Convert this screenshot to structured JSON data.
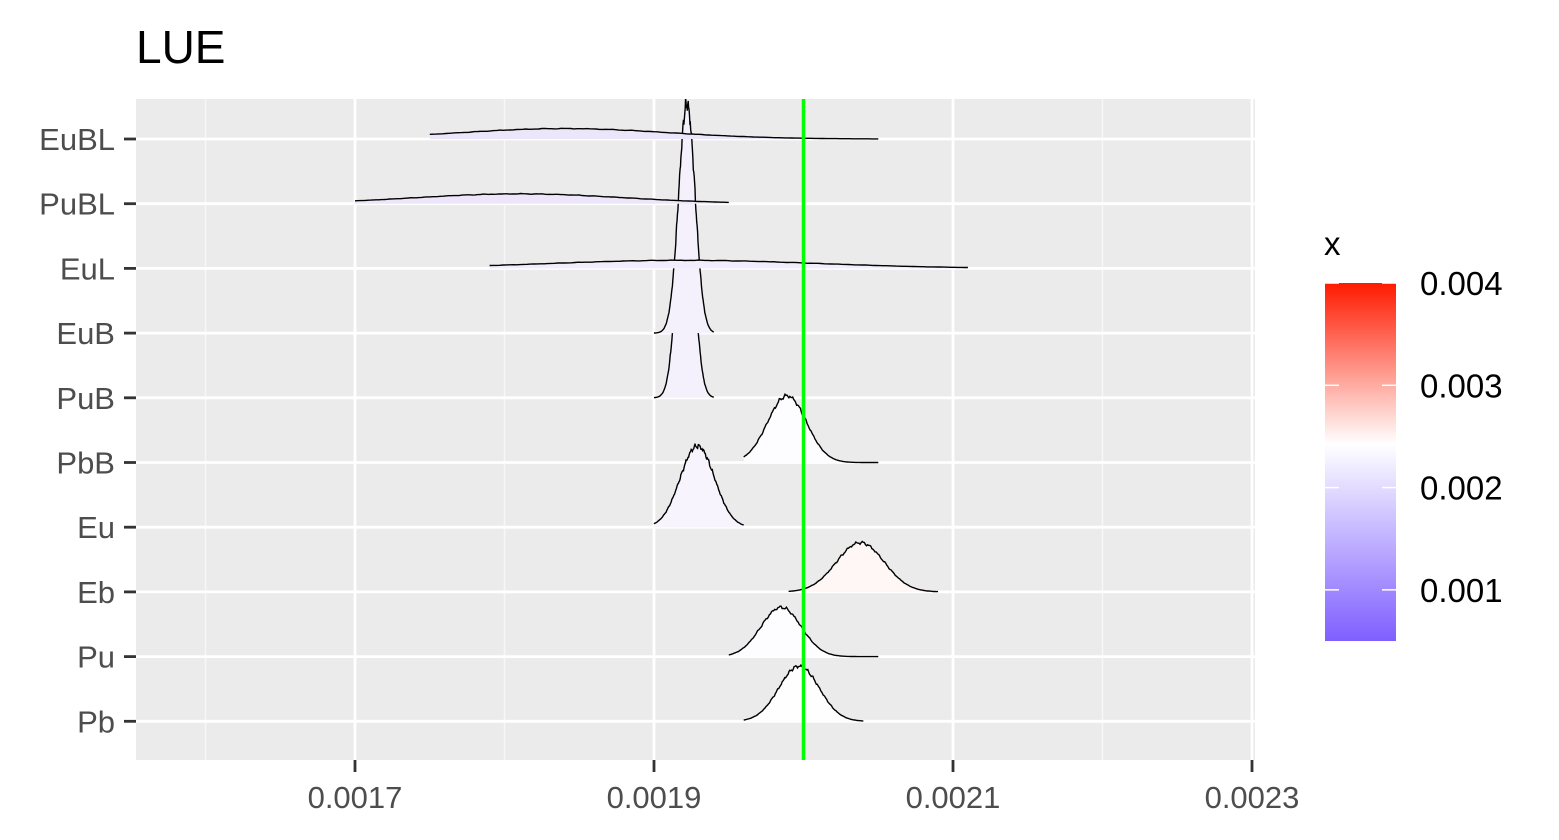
{
  "chart_data": {
    "type": "ridgeline",
    "title": "LUE",
    "xlabel": "",
    "ylabel": "",
    "categories": [
      "EuBL",
      "PuBL",
      "EuL",
      "EuB",
      "PuB",
      "PbB",
      "Eu",
      "Eb",
      "Pu",
      "Pb"
    ],
    "x_ticks": [
      "0.0017",
      "0.0019",
      "0.0021",
      "0.0023"
    ],
    "xlim": [
      0.00156,
      0.00231
    ],
    "reference_line": {
      "x": 0.002,
      "color": "#00ff00"
    },
    "grid": true,
    "legend": {
      "title": "x",
      "position": "right",
      "labels": [
        "0.004",
        "0.003",
        "0.002",
        "0.001"
      ],
      "scale": {
        "low": "#7f5fff",
        "mid": "#ffffff",
        "high": "#ff1a00",
        "min": 0.0005,
        "midpoint": 0.002,
        "max": 0.004
      }
    },
    "series": [
      {
        "name": "EuBL",
        "range": [
          0.00175,
          0.00205
        ],
        "mode": 0.00184,
        "sd": 7e-05,
        "peak": 0.18,
        "color": "#ece6fb"
      },
      {
        "name": "PuBL",
        "range": [
          0.0017,
          0.00195
        ],
        "mode": 0.00181,
        "sd": 7e-05,
        "peak": 0.17,
        "color": "#ede6fb"
      },
      {
        "name": "EuL",
        "range": [
          0.00179,
          0.00211
        ],
        "mode": 0.00192,
        "sd": 9e-05,
        "peak": 0.14,
        "color": "#f1edfc"
      },
      {
        "name": "EuB",
        "range": [
          0.0019,
          0.00194
        ],
        "mode": 0.001922,
        "sd": 5.5e-06,
        "peak": 3.95,
        "color": "#f4f1fd"
      },
      {
        "name": "PuB",
        "range": [
          0.0019,
          0.00194
        ],
        "mode": 0.001921,
        "sd": 5.5e-06,
        "peak": 3.9,
        "color": "#f4f1fd"
      },
      {
        "name": "PbB",
        "range": [
          0.00196,
          0.00205
        ],
        "mode": 0.001989,
        "sd": 1.3e-05,
        "peak": 1.15,
        "color": "#fdfdff"
      },
      {
        "name": "Eu",
        "range": [
          0.0019,
          0.00196
        ],
        "mode": 0.001929,
        "sd": 1.15e-05,
        "peak": 1.4,
        "color": "#f7f4fe"
      },
      {
        "name": "Eb",
        "range": [
          0.00199,
          0.00209
        ],
        "mode": 0.002038,
        "sd": 1.6e-05,
        "peak": 0.85,
        "color": "#fff7f5"
      },
      {
        "name": "Pu",
        "range": [
          0.00195,
          0.00205
        ],
        "mode": 0.001985,
        "sd": 1.35e-05,
        "peak": 0.85,
        "color": "#fdfcff"
      },
      {
        "name": "Pb",
        "range": [
          0.00196,
          0.00204
        ],
        "mode": 0.001997,
        "sd": 1.35e-05,
        "peak": 0.95,
        "color": "#fffefe"
      }
    ]
  }
}
